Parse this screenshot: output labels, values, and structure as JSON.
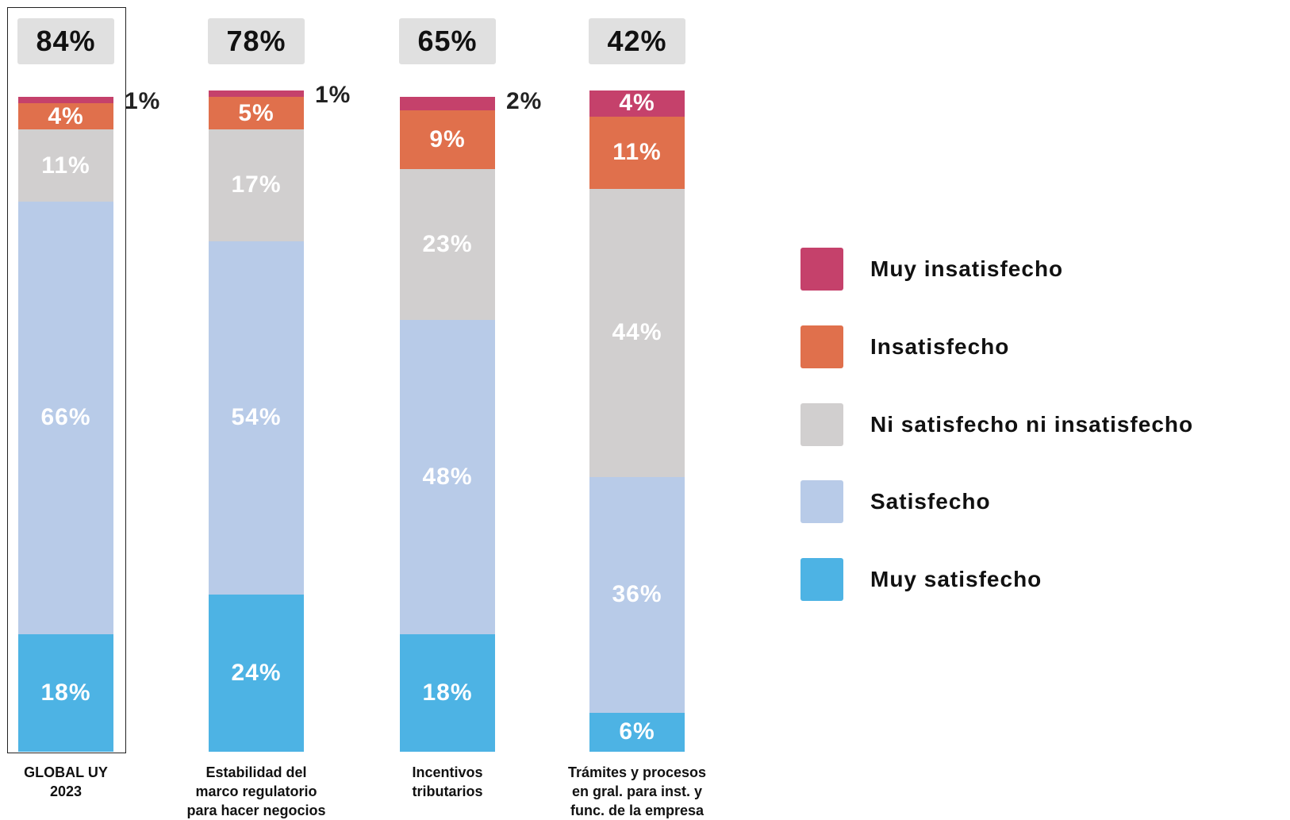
{
  "chart_data": {
    "type": "stacked_bar",
    "categories": [
      "GLOBAL UY\n2023",
      "Estabilidad del\nmarco regulatorio\npara hacer negocios",
      "Incentivos\ntributarios",
      "Trámites y procesos\nen gral. para inst. y\nfunc. de la empresa"
    ],
    "ylim": [
      0,
      100
    ],
    "series": [
      {
        "name": "Muy satisfecho",
        "color": "#4db3e4",
        "values": [
          18,
          24,
          18,
          6
        ],
        "value_labels": [
          "18%",
          "24%",
          "18%",
          "6%"
        ]
      },
      {
        "name": "Satisfecho",
        "color": "#b8cbe8",
        "values": [
          66,
          54,
          48,
          36
        ],
        "value_labels": [
          "66%",
          "54%",
          "48%",
          "36%"
        ]
      },
      {
        "name": "Ni satisfecho ni insatisfecho",
        "color": "#d1cfcf",
        "values": [
          11,
          17,
          23,
          44
        ],
        "value_labels": [
          "11%",
          "17%",
          "23%",
          "44%"
        ]
      },
      {
        "name": "Insatisfecho",
        "color": "#e0704c",
        "values": [
          4,
          5,
          9,
          11
        ],
        "value_labels": [
          "4%",
          "5%",
          "9%",
          "11%"
        ]
      },
      {
        "name": "Muy insatisfecho",
        "color": "#c5416b",
        "values": [
          1,
          1,
          2,
          4
        ],
        "value_labels": [
          "1%",
          "1%",
          "2%",
          "4%"
        ]
      }
    ],
    "totals": {
      "values": [
        84,
        78,
        65,
        42
      ],
      "value_labels": [
        "84%",
        "78%",
        "65%",
        "42%"
      ]
    },
    "legend": "right"
  }
}
